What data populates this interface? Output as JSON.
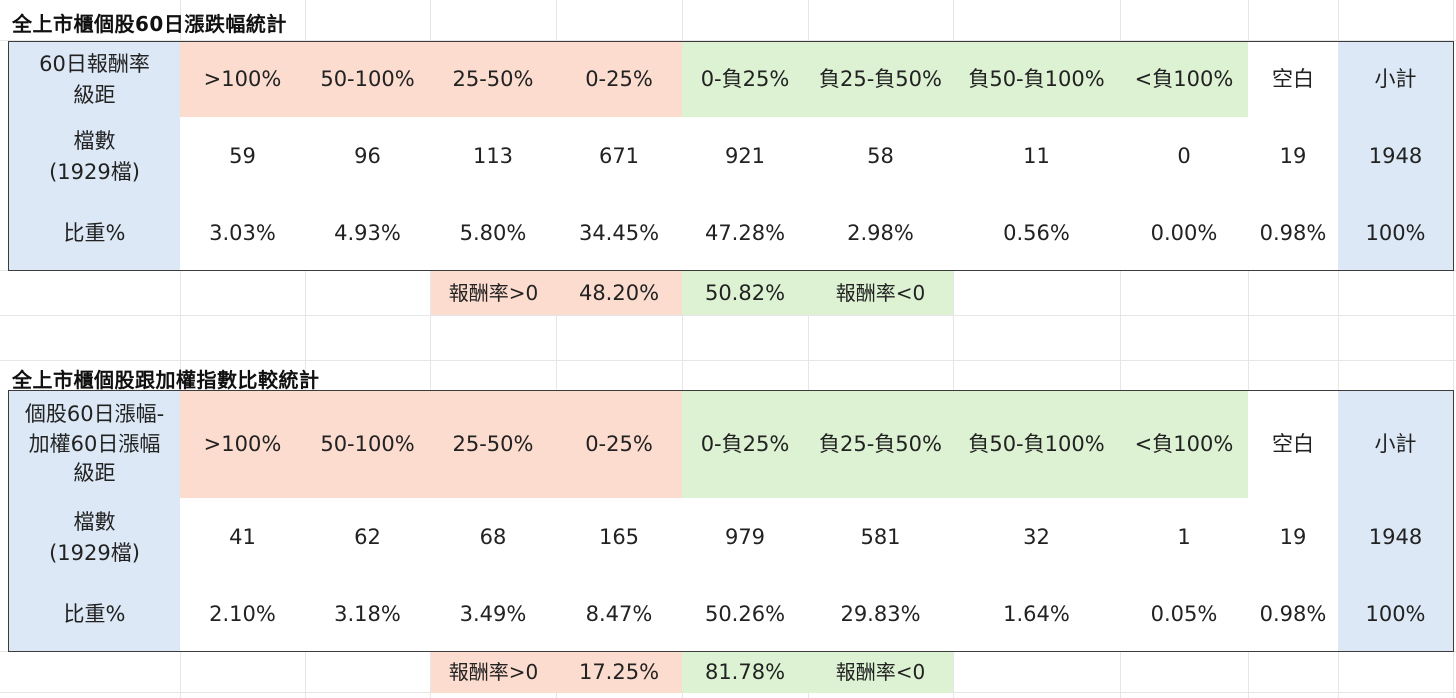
{
  "tables": [
    {
      "title": "全上市櫃個股60日漲跌幅統計",
      "header_label": "60日報酬率\n級距",
      "columns": [
        ">100%",
        "50-100%",
        "25-50%",
        "0-25%",
        "0-負25%",
        "負25-負50%",
        "負50-負100%",
        "<負100%",
        "空白",
        "小計"
      ],
      "count_label": "檔數\n(1929檔)",
      "counts": [
        "59",
        "96",
        "113",
        "671",
        "921",
        "58",
        "11",
        "0",
        "19",
        "1948"
      ],
      "pct_label": "比重%",
      "pcts": [
        "3.03%",
        "4.93%",
        "5.80%",
        "34.45%",
        "47.28%",
        "2.98%",
        "0.56%",
        "0.00%",
        "0.98%",
        "100%"
      ],
      "summary": {
        "positive_label": "報酬率>0",
        "positive_value": "48.20%",
        "negative_value": "50.82%",
        "negative_label": "報酬率<0"
      }
    },
    {
      "title": "全上市櫃個股跟加權指數比較統計",
      "header_label": "個股60日漲幅-\n加權60日漲幅\n級距",
      "columns": [
        ">100%",
        "50-100%",
        "25-50%",
        "0-25%",
        "0-負25%",
        "負25-負50%",
        "負50-負100%",
        "<負100%",
        "空白",
        "小計"
      ],
      "count_label": "檔數\n(1929檔)",
      "counts": [
        "41",
        "62",
        "68",
        "165",
        "979",
        "581",
        "32",
        "1",
        "19",
        "1948"
      ],
      "pct_label": "比重%",
      "pcts": [
        "2.10%",
        "3.18%",
        "3.49%",
        "8.47%",
        "50.26%",
        "29.83%",
        "1.64%",
        "0.05%",
        "0.98%",
        "100%"
      ],
      "summary": {
        "positive_label": "報酬率>0",
        "positive_value": "17.25%",
        "negative_value": "81.78%",
        "negative_label": "報酬率<0"
      }
    }
  ],
  "colors": {
    "label_blue": "#dce8f5",
    "positive_pink": "#fbdccf",
    "negative_green": "#dcf2d3",
    "border": "#3c3c3c",
    "gridline": "#e6e6e6"
  }
}
